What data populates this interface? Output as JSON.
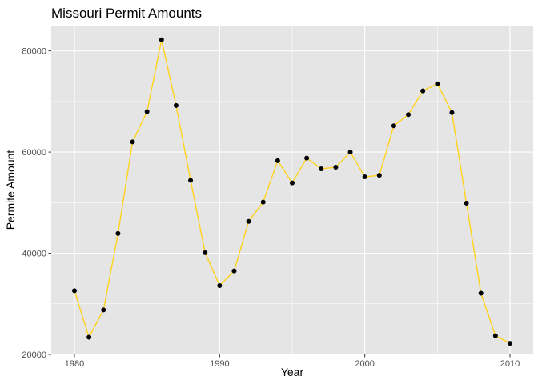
{
  "chart_data": {
    "type": "line",
    "title": "Missouri Permit Amounts",
    "xlabel": "Year",
    "ylabel": "Permite Amount",
    "xlim": [
      1978.4,
      2011.6
    ],
    "ylim": [
      20000,
      85000
    ],
    "x_ticks": [
      1980,
      1990,
      2000,
      2010
    ],
    "x_tick_labels": [
      "1980",
      "1990",
      "2000",
      "2010"
    ],
    "y_ticks": [
      20000,
      40000,
      60000,
      80000
    ],
    "y_tick_labels": [
      "20000",
      "40000",
      "60000",
      "80000"
    ],
    "grid": true,
    "legend": "none",
    "colors": {
      "panel_background": "#e5e5e5",
      "grid": "#ffffff",
      "line": "#ffd21a",
      "point": "#000000"
    },
    "series": [
      {
        "x": [
          1980,
          1981,
          1982,
          1983,
          1984,
          1985,
          1986,
          1987,
          1988,
          1989,
          1990,
          1991,
          1992,
          1993,
          1994,
          1995,
          1996,
          1997,
          1998,
          1999,
          2000,
          2001,
          2002,
          2003,
          2004,
          2005,
          2006,
          2007,
          2008,
          2009,
          2010
        ],
        "values": [
          32600,
          23400,
          28800,
          43900,
          62000,
          68000,
          82200,
          69200,
          54400,
          40100,
          33600,
          36500,
          46300,
          50100,
          58300,
          53900,
          58800,
          56700,
          57000,
          60000,
          55100,
          55400,
          65200,
          67400,
          72100,
          73500,
          67800,
          49900,
          32100,
          23700,
          22200
        ]
      }
    ]
  }
}
